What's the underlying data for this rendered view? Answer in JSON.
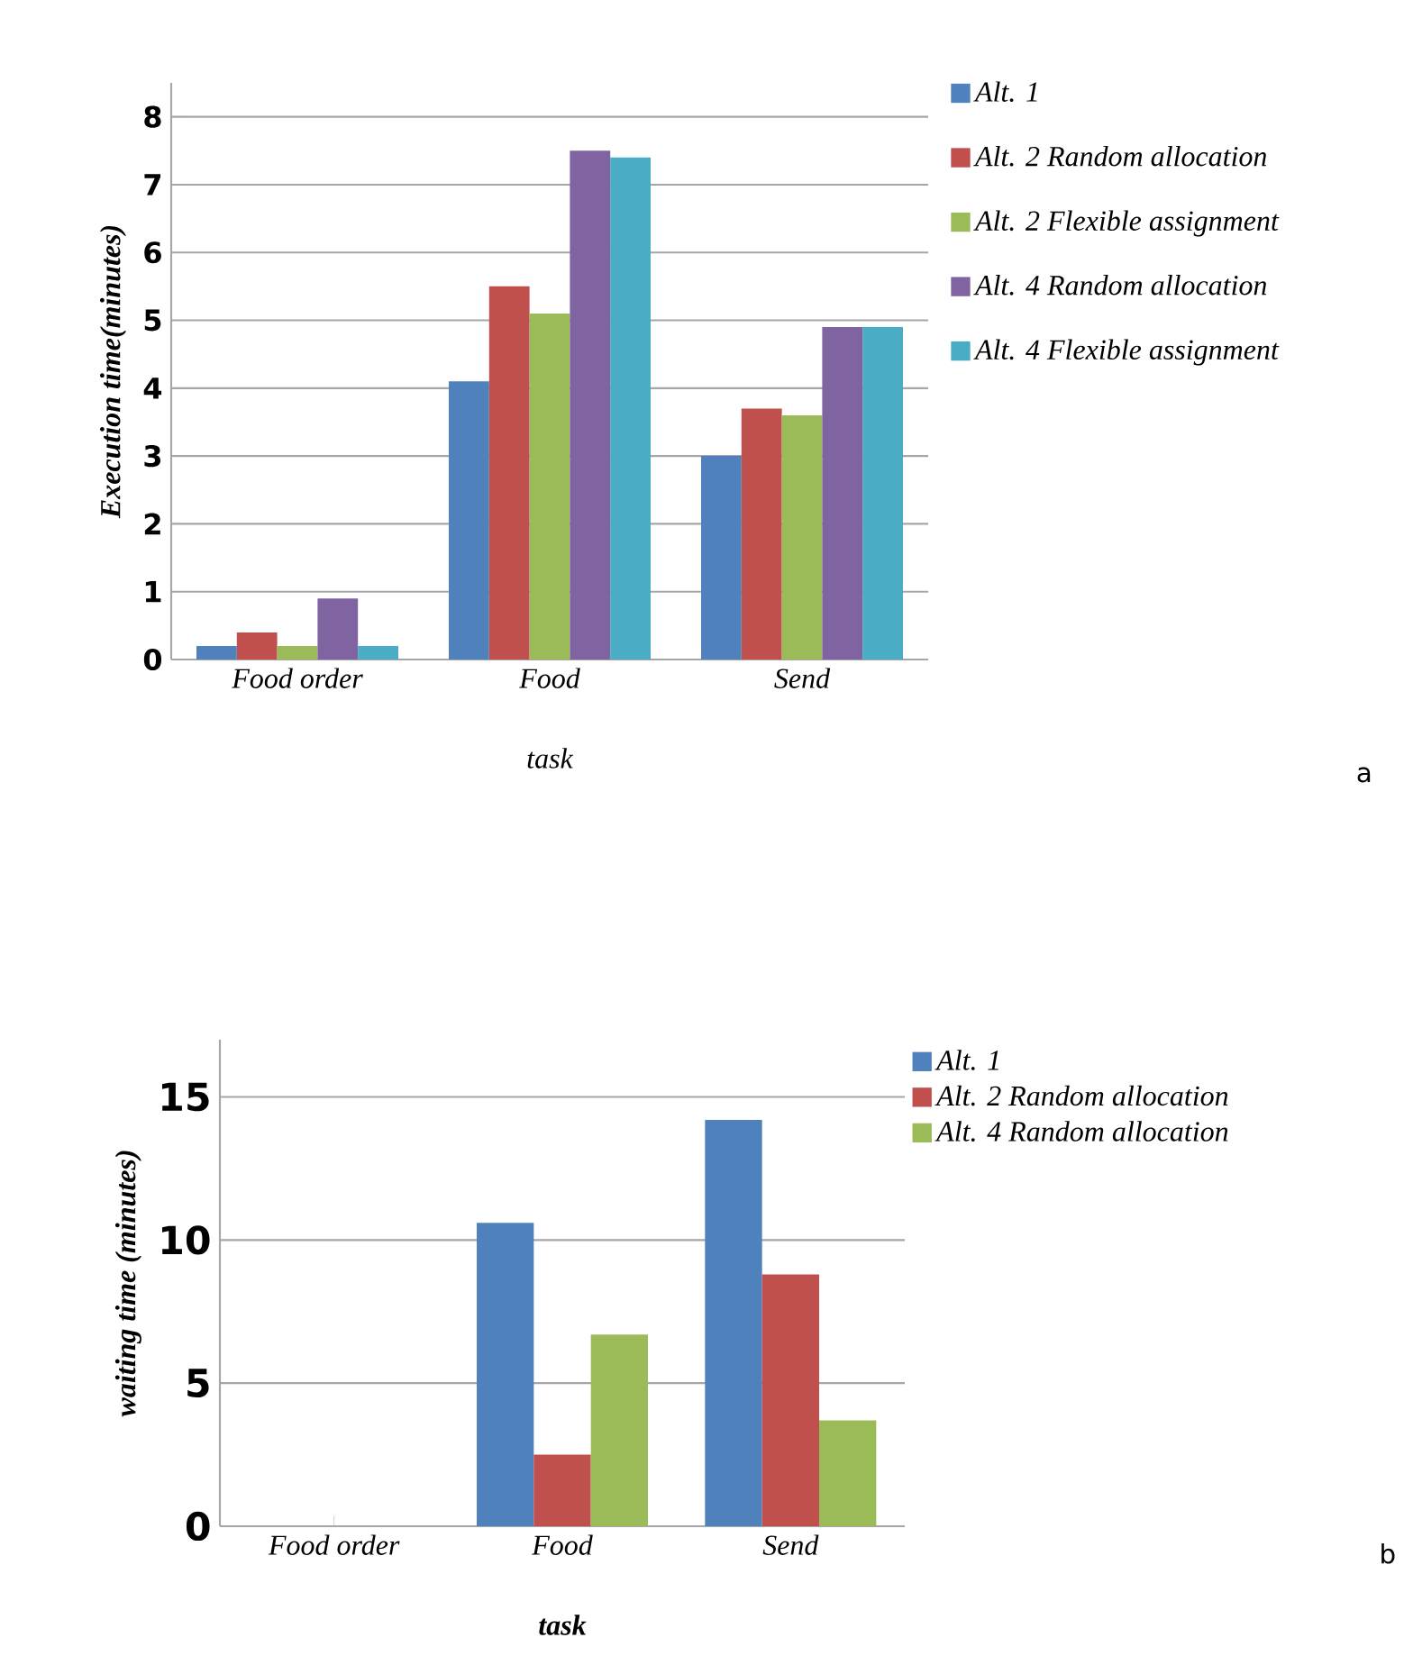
{
  "chart_data": [
    {
      "type": "bar",
      "categories": [
        "Food order",
        "Food",
        "Send"
      ],
      "xlabel": "task",
      "ylabel": "Execution time(minutes)",
      "ylim": [
        0,
        8.5
      ],
      "yticks": [
        0,
        1,
        2,
        3,
        4,
        5,
        6,
        7,
        8
      ],
      "grid": "y",
      "legend": "right",
      "annotations": [
        "a"
      ],
      "series": [
        {
          "name": "Alt. 1",
          "color": "#4f81bd",
          "values": [
            0.2,
            4.1,
            3.0
          ]
        },
        {
          "name": "Alt. 2 Random allocation",
          "color": "#c0504d",
          "values": [
            0.4,
            5.5,
            3.7
          ]
        },
        {
          "name": "Alt. 2 Flexible assignment",
          "color": "#9bbb59",
          "values": [
            0.2,
            5.1,
            3.6
          ]
        },
        {
          "name": "Alt. 4 Random allocation",
          "color": "#8064a2",
          "values": [
            0.9,
            7.5,
            4.9
          ]
        },
        {
          "name": "Alt. 4 Flexible assignment",
          "color": "#4bacc6",
          "values": [
            0.2,
            7.4,
            4.9
          ]
        }
      ]
    },
    {
      "type": "bar",
      "categories": [
        "Food order",
        "Food",
        "Send"
      ],
      "xlabel": "task",
      "ylabel": "waiting time (minutes)",
      "ylim": [
        0,
        17
      ],
      "yticks": [
        0,
        5,
        10,
        15
      ],
      "grid": "y",
      "legend": "top right",
      "annotations": [
        "b"
      ],
      "series": [
        {
          "name": "Alt. 1",
          "color": "#4f81bd",
          "values": [
            0,
            10.6,
            14.2
          ]
        },
        {
          "name": "Alt. 2 Random allocation",
          "color": "#c0504d",
          "values": [
            0,
            2.5,
            8.8
          ]
        },
        {
          "name": "Alt. 4 Random allocation",
          "color": "#9bbb59",
          "values": [
            0,
            6.7,
            3.7
          ]
        }
      ]
    }
  ]
}
